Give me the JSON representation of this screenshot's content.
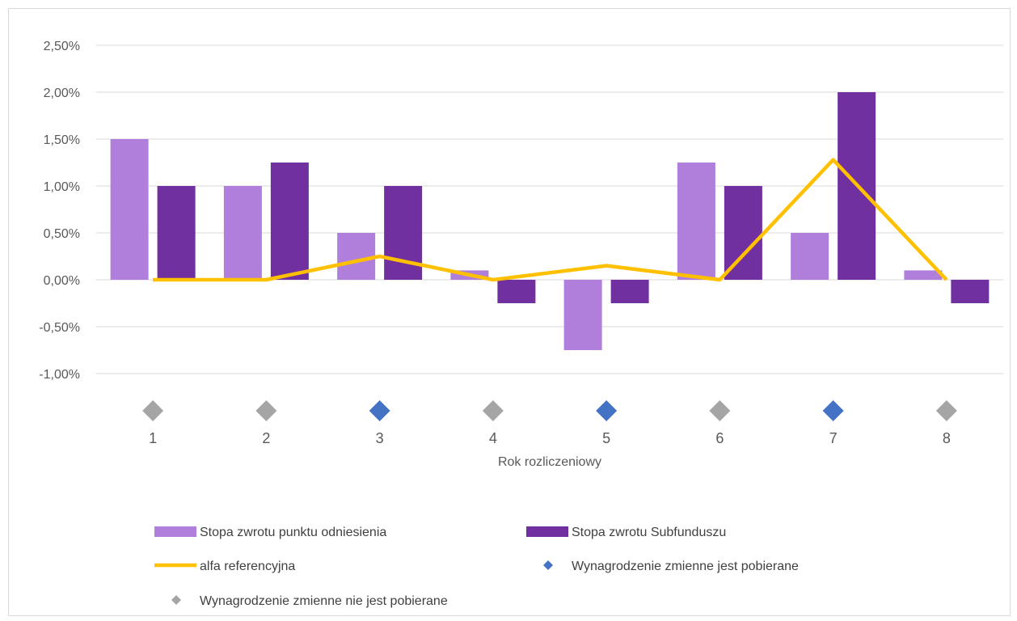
{
  "chart_data": {
    "type": "bar",
    "title": "",
    "xlabel": "Rok rozliczeniowy",
    "ylabel": "",
    "categories": [
      "1",
      "2",
      "3",
      "4",
      "5",
      "6",
      "7",
      "8"
    ],
    "ylim": [
      -1.0,
      2.5
    ],
    "yticks": [
      -1.0,
      -0.5,
      0.0,
      0.5,
      1.0,
      1.5,
      2.0,
      2.5
    ],
    "ytick_labels": [
      "-1,00%",
      "-0,50%",
      "0,00%",
      "0,50%",
      "1,00%",
      "1,50%",
      "2,00%",
      "2,50%"
    ],
    "grid": true,
    "legend_position": "bottom",
    "series": [
      {
        "name": "Stopa zwrotu punktu odniesienia",
        "kind": "bar",
        "color": "#b07fdb",
        "values": [
          1.5,
          1.0,
          0.5,
          0.1,
          -0.75,
          1.25,
          0.5,
          0.1
        ]
      },
      {
        "name": "Stopa zwrotu Subfunduszu",
        "kind": "bar",
        "color": "#7030a0",
        "values": [
          1.0,
          1.25,
          1.0,
          -0.25,
          -0.25,
          1.0,
          2.0,
          -0.25
        ]
      },
      {
        "name": "alfa referencyjna",
        "kind": "line",
        "color": "#ffc000",
        "values": [
          0.0,
          0.0,
          0.25,
          0.0,
          0.15,
          0.0,
          1.28,
          0.0
        ]
      }
    ],
    "markers": {
      "charged_name": "Wynagrodzenie zmienne jest pobierane",
      "charged_color": "#4472c4",
      "not_charged_name": "Wynagrodzenie zmienne nie jest pobierane",
      "not_charged_color": "#a5a5a5",
      "charged": [
        false,
        false,
        true,
        false,
        true,
        false,
        true,
        false
      ]
    }
  }
}
